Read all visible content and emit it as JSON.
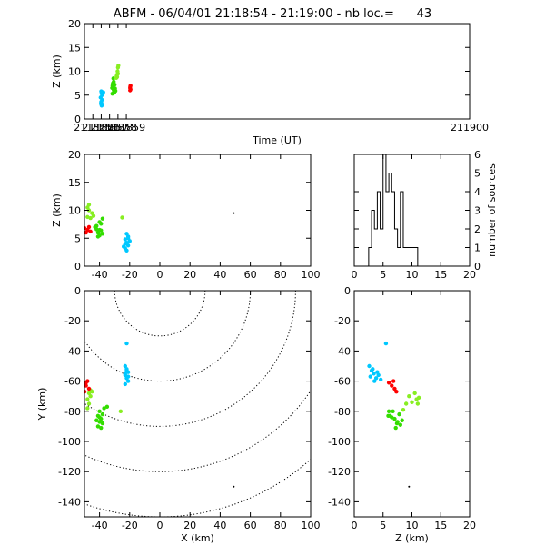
{
  "title": "ABFM - 06/04/01 21:18:54 - 21:19:00 - nb loc.=      43",
  "colors": {
    "red": "#ff0000",
    "green": "#33dd00",
    "lime": "#88ee22",
    "cyan": "#00c8ff",
    "black": "#000000"
  },
  "chart_data": [
    {
      "id": "time_z",
      "type": "scatter",
      "xlabel": "Time (UT)",
      "ylabel": "Z (km)",
      "xlim": [
        211854.0,
        211900.0
      ],
      "ylim": [
        0,
        20
      ],
      "xticks": [
        "211855",
        "211856",
        "211857",
        "211858",
        "211859",
        "211900"
      ],
      "yticks": [
        "0",
        "5",
        "10",
        "15",
        "20"
      ],
      "series": [
        {
          "color": "cyan",
          "points": [
            [
              211856.0,
              5.8
            ],
            [
              211856.05,
              5.5
            ],
            [
              211856.1,
              5.0
            ],
            [
              211855.93,
              4.5
            ],
            [
              211856.1,
              4.0
            ],
            [
              211856.0,
              3.6
            ],
            [
              211855.97,
              3.2
            ],
            [
              211856.05,
              2.8
            ],
            [
              211856.2,
              5.3
            ],
            [
              211856.25,
              5.6
            ],
            [
              211856.15,
              3.0
            ]
          ]
        },
        {
          "color": "green",
          "points": [
            [
              211857.3,
              6.5
            ],
            [
              211857.35,
              7.0
            ],
            [
              211857.4,
              7.5
            ],
            [
              211857.45,
              8.5
            ],
            [
              211857.5,
              6.0
            ],
            [
              211857.55,
              5.5
            ],
            [
              211857.6,
              7.2
            ],
            [
              211857.65,
              6.4
            ],
            [
              211857.7,
              5.9
            ],
            [
              211857.33,
              5.3
            ],
            [
              211857.4,
              6.9
            ],
            [
              211857.5,
              7.8
            ]
          ]
        },
        {
          "color": "lime",
          "points": [
            [
              211857.8,
              8.6
            ],
            [
              211857.85,
              9.0
            ],
            [
              211857.9,
              8.8
            ],
            [
              211857.95,
              10.0
            ],
            [
              211858.0,
              10.8
            ],
            [
              211858.05,
              11.2
            ],
            [
              211858.0,
              9.5
            ],
            [
              211857.9,
              9.3
            ]
          ]
        },
        {
          "color": "red",
          "points": [
            [
              211859.45,
              6.0
            ],
            [
              211859.45,
              6.5
            ],
            [
              211859.5,
              7.0
            ],
            [
              211859.47,
              6.8
            ],
            [
              211859.5,
              6.2
            ]
          ]
        }
      ]
    },
    {
      "id": "x_z",
      "type": "scatter",
      "xlabel": "",
      "ylabel": "Z (km)",
      "xlim": [
        -50,
        100
      ],
      "ylim": [
        0,
        20
      ],
      "xticks": [
        "-40",
        "-20",
        "0",
        "20",
        "40",
        "60",
        "80",
        "100"
      ],
      "yticks": [
        "0",
        "5",
        "10",
        "15",
        "20"
      ],
      "series": [
        {
          "color": "cyan",
          "points": [
            [
              -22,
              5.8
            ],
            [
              -21,
              5.3
            ],
            [
              -23,
              4.8
            ],
            [
              -22,
              4.2
            ],
            [
              -21,
              3.7
            ],
            [
              -23,
              3.2
            ],
            [
              -22,
              2.8
            ],
            [
              -20,
              4.5
            ],
            [
              -24,
              3.5
            ],
            [
              -21,
              5.0
            ],
            [
              -23,
              4.0
            ]
          ]
        },
        {
          "color": "green",
          "points": [
            [
              -40,
              6.5
            ],
            [
              -42,
              7.2
            ],
            [
              -39,
              7.6
            ],
            [
              -38,
              8.5
            ],
            [
              -41,
              6.0
            ],
            [
              -40,
              5.5
            ],
            [
              -43,
              7.0
            ],
            [
              -39,
              6.4
            ],
            [
              -38,
              5.8
            ],
            [
              -41,
              5.3
            ],
            [
              -42,
              6.6
            ],
            [
              -40,
              7.9
            ]
          ]
        },
        {
          "color": "lime",
          "points": [
            [
              -48,
              10.5
            ],
            [
              -47,
              10.0
            ],
            [
              -45,
              9.5
            ],
            [
              -44,
              9.0
            ],
            [
              -46,
              8.6
            ],
            [
              -48,
              8.8
            ],
            [
              -25,
              8.7
            ],
            [
              -47,
              11.0
            ]
          ]
        },
        {
          "color": "red",
          "points": [
            [
              -49,
              6.0
            ],
            [
              -48,
              6.5
            ],
            [
              -47,
              7.0
            ],
            [
              -50,
              6.8
            ],
            [
              -46,
              6.2
            ]
          ]
        },
        {
          "color": "black",
          "points": [
            [
              49,
              9.5
            ]
          ]
        }
      ]
    },
    {
      "id": "z_histogram",
      "type": "bar",
      "xlabel": "",
      "ylabel": "number of sources",
      "xlim": [
        0,
        20
      ],
      "ylim": [
        0,
        6
      ],
      "xticks": [
        "0",
        "5",
        "10",
        "15",
        "20"
      ],
      "yticks": [
        "0",
        "1",
        "2",
        "3",
        "4",
        "5",
        "6"
      ],
      "bin_width": 0.5,
      "bins": [
        [
          2.5,
          1
        ],
        [
          3.0,
          3
        ],
        [
          3.5,
          2
        ],
        [
          4.0,
          4
        ],
        [
          4.5,
          2
        ],
        [
          5.0,
          6
        ],
        [
          5.5,
          4
        ],
        [
          6.0,
          5
        ],
        [
          6.5,
          4
        ],
        [
          7.0,
          2
        ],
        [
          7.5,
          1
        ],
        [
          8.0,
          4
        ],
        [
          8.5,
          1
        ],
        [
          9.0,
          1
        ],
        [
          9.5,
          1
        ],
        [
          10.0,
          1
        ],
        [
          10.5,
          1
        ]
      ]
    },
    {
      "id": "x_y",
      "type": "scatter",
      "xlabel": "X (km)",
      "ylabel": "Y (km)",
      "xlim": [
        -50,
        100
      ],
      "ylim": [
        -150,
        0
      ],
      "xticks": [
        "-40",
        "-20",
        "0",
        "20",
        "40",
        "60",
        "80",
        "100"
      ],
      "yticks": [
        "-140",
        "-120",
        "-100",
        "-80",
        "-60",
        "-40",
        "-20",
        "0"
      ],
      "range_circles_center": [
        0,
        0
      ],
      "range_circles_radii_km": [
        30,
        60,
        90,
        120,
        150
      ],
      "series": [
        {
          "color": "cyan",
          "points": [
            [
              -22,
              -35
            ],
            [
              -23,
              -50
            ],
            [
              -22,
              -52
            ],
            [
              -21,
              -54
            ],
            [
              -23,
              -56
            ],
            [
              -22,
              -58
            ],
            [
              -21,
              -60
            ],
            [
              -23,
              -62
            ],
            [
              -22,
              -53
            ],
            [
              -21,
              -57
            ],
            [
              -23,
              -55
            ]
          ]
        },
        {
          "color": "green",
          "points": [
            [
              -40,
              -80
            ],
            [
              -41,
              -83
            ],
            [
              -39,
              -85
            ],
            [
              -40,
              -87
            ],
            [
              -38,
              -88
            ],
            [
              -41,
              -90
            ],
            [
              -39,
              -91
            ],
            [
              -37,
              -78
            ],
            [
              -35,
              -77
            ],
            [
              -40,
              -84
            ],
            [
              -38,
              -82
            ],
            [
              -42,
              -86
            ]
          ]
        },
        {
          "color": "lime",
          "points": [
            [
              -47,
              -68
            ],
            [
              -48,
              -72
            ],
            [
              -47,
              -75
            ],
            [
              -46,
              -66
            ],
            [
              -48,
              -78
            ],
            [
              -46,
              -70
            ],
            [
              -26,
              -80
            ],
            [
              -45,
              -67
            ]
          ]
        },
        {
          "color": "red",
          "points": [
            [
              -49,
              -63
            ],
            [
              -48,
              -60
            ],
            [
              -47,
              -65
            ],
            [
              -50,
              -67
            ],
            [
              -49,
              -61
            ]
          ]
        },
        {
          "color": "black",
          "points": [
            [
              49,
              -130
            ]
          ]
        }
      ]
    },
    {
      "id": "z_y",
      "type": "scatter",
      "xlabel": "Z (km)",
      "ylabel": "",
      "xlim": [
        0,
        20
      ],
      "ylim": [
        -150,
        0
      ],
      "xticks": [
        "0",
        "5",
        "10",
        "15",
        "20"
      ],
      "yticks": [
        "-140",
        "-120",
        "-100",
        "-80",
        "-60",
        "-40",
        "-20",
        "0"
      ],
      "series": [
        {
          "color": "cyan",
          "points": [
            [
              5.5,
              -35
            ],
            [
              2.6,
              -50
            ],
            [
              3.0,
              -53
            ],
            [
              3.4,
              -55
            ],
            [
              2.8,
              -57
            ],
            [
              3.8,
              -58
            ],
            [
              4.2,
              -56
            ],
            [
              3.5,
              -60
            ],
            [
              4.6,
              -59
            ],
            [
              3.2,
              -52
            ],
            [
              4.0,
              -54
            ]
          ]
        },
        {
          "color": "green",
          "points": [
            [
              6.0,
              -80
            ],
            [
              6.5,
              -84
            ],
            [
              7.0,
              -85
            ],
            [
              7.5,
              -87
            ],
            [
              8.0,
              -89
            ],
            [
              7.2,
              -91
            ],
            [
              6.2,
              -83
            ],
            [
              7.8,
              -82
            ],
            [
              8.3,
              -86
            ],
            [
              6.7,
              -80
            ],
            [
              5.9,
              -83
            ],
            [
              7.4,
              -88
            ]
          ]
        },
        {
          "color": "lime",
          "points": [
            [
              10.5,
              -68
            ],
            [
              10.8,
              -72
            ],
            [
              10.0,
              -74
            ],
            [
              11.0,
              -75
            ],
            [
              9.5,
              -70
            ],
            [
              9.0,
              -75
            ],
            [
              8.5,
              -79
            ],
            [
              11.2,
              -71
            ]
          ]
        },
        {
          "color": "red",
          "points": [
            [
              6.0,
              -61
            ],
            [
              6.5,
              -63
            ],
            [
              7.0,
              -65
            ],
            [
              6.8,
              -60
            ],
            [
              7.3,
              -67
            ]
          ]
        },
        {
          "color": "black",
          "points": [
            [
              9.5,
              -130
            ]
          ]
        }
      ]
    }
  ]
}
